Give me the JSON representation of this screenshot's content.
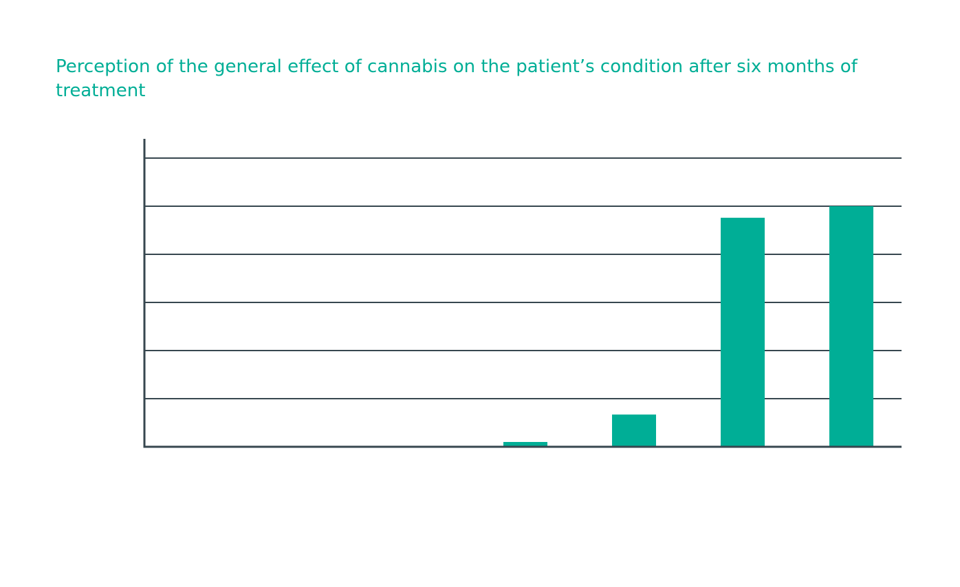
{
  "chart_data": {
    "type": "bar",
    "title": "Perception of the general effect of cannabis on the patient’s condition after six months of treatment",
    "xlabel": "",
    "ylabel": "",
    "categories": [
      "",
      "",
      "",
      "",
      "",
      "",
      ""
    ],
    "values": [
      0,
      0,
      0,
      1,
      6.7,
      47.6,
      50
    ],
    "ylim": [
      0,
      60
    ],
    "gridlines": [
      10,
      20,
      30,
      40,
      50,
      60
    ],
    "grid": true,
    "legend": "none",
    "colors": {
      "bar": "#00AE96",
      "axis": "#37474F",
      "grid": "#37474F",
      "title": "#00AE96"
    }
  }
}
